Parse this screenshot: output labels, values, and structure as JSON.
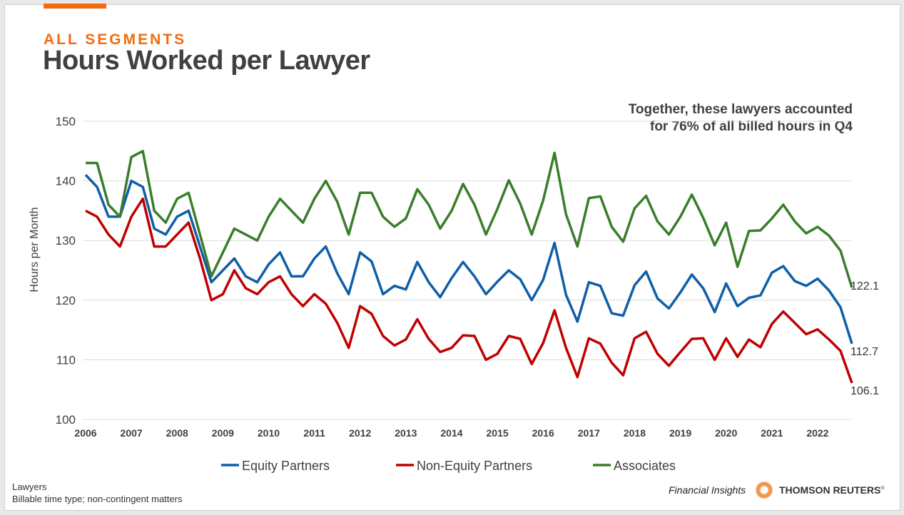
{
  "header": {
    "kicker": "ALL SEGMENTS",
    "title": "Hours Worked per Lawyer"
  },
  "annotation": {
    "line1": "Together, these lawyers accounted",
    "line2": "for 76% of all billed hours in Q4"
  },
  "footer": {
    "line1": "Lawyers",
    "line2": "Billable time type; non-contingent matters",
    "brand_tag": "Financial Insights",
    "brand": "THOMSON REUTERS",
    "brand_mark": "®"
  },
  "chart_data": {
    "type": "line",
    "title": "Hours Worked per Lawyer",
    "xlabel": "",
    "ylabel": "Hours per Month",
    "ylim": [
      100,
      150
    ],
    "yticks": [
      "100",
      "110",
      "120",
      "130",
      "140",
      "150"
    ],
    "xticks": [
      "2006",
      "2007",
      "2008",
      "2009",
      "2010",
      "2011",
      "2012",
      "2013",
      "2014",
      "2015",
      "2016",
      "2017",
      "2018",
      "2019",
      "2020",
      "2021",
      "2022"
    ],
    "x_note": "quarterly, 2006 Q1 – 2022 Q4",
    "grid": true,
    "legend": "bottom",
    "series": [
      {
        "name": "Equity Partners",
        "color": "#0f5ea8",
        "end_label": "112.7",
        "values": [
          141,
          139,
          134,
          134,
          140,
          139,
          132,
          131,
          134,
          135,
          129,
          123,
          125,
          127,
          124,
          123,
          126,
          128,
          124,
          124,
          127,
          129,
          124.5,
          121,
          128,
          126.5,
          121,
          122.4,
          121.8,
          126.4,
          123,
          120.5,
          123.7,
          126.4,
          124,
          121,
          123.1,
          125,
          123.5,
          120,
          123.4,
          129.6,
          120.9,
          116.4,
          123,
          122.4,
          117.8,
          117.4,
          122.5,
          124.8,
          120.3,
          118.6,
          121.3,
          124.3,
          122,
          118,
          122.8,
          119,
          120.4,
          120.8,
          124.6,
          125.7,
          123.2,
          122.4,
          123.6,
          121.6,
          118.8,
          112.7
        ]
      },
      {
        "name": "Non-Equity Partners",
        "color": "#c00000",
        "end_label": "106.1",
        "values": [
          135,
          134,
          131,
          129,
          134,
          137,
          129,
          129,
          131,
          133,
          127,
          120,
          121,
          125,
          122,
          121,
          123,
          124,
          121,
          119,
          121,
          119.4,
          116.2,
          112,
          119,
          117.7,
          114,
          112.4,
          113.4,
          116.8,
          113.5,
          111.3,
          112,
          114.1,
          114,
          110,
          111,
          114,
          113.5,
          109.3,
          112.8,
          118.3,
          112,
          107.1,
          113.6,
          112.7,
          109.5,
          107.4,
          113.6,
          114.7,
          111,
          109,
          111.3,
          113.5,
          113.6,
          110,
          113.6,
          110.5,
          113.4,
          112.1,
          116,
          118.1,
          116.2,
          114.3,
          115.1,
          113.4,
          111.5,
          106.1
        ]
      },
      {
        "name": "Associates",
        "color": "#3a7d2c",
        "end_label": "122.1",
        "values": [
          143,
          143,
          136,
          134,
          144,
          145,
          135,
          133,
          137,
          138,
          131,
          124,
          128,
          132,
          131,
          130,
          134,
          137,
          135,
          133,
          137,
          140,
          136.5,
          131,
          138,
          138,
          134,
          132.3,
          133.7,
          138.6,
          136,
          132,
          135,
          139.5,
          136,
          131,
          135.3,
          140.1,
          136.2,
          131,
          136.7,
          144.7,
          134.4,
          129,
          137.1,
          137.4,
          132.3,
          129.8,
          135.4,
          137.5,
          133.2,
          131,
          134,
          137.7,
          133.8,
          129.2,
          133,
          125.6,
          131.6,
          131.7,
          133.7,
          136,
          133.2,
          131.2,
          132.3,
          130.8,
          128.3,
          122.1
        ]
      }
    ]
  }
}
